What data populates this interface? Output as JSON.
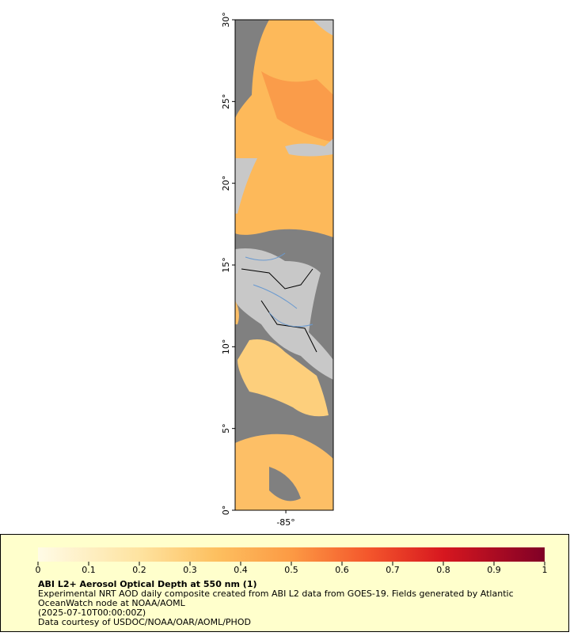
{
  "map": {
    "latlim": [
      0,
      30
    ],
    "lonlim": [
      -88.1,
      -82.1
    ],
    "lat_ticks": [
      {
        "value": 0,
        "label": "0°"
      },
      {
        "value": 5,
        "label": "5°"
      },
      {
        "value": 10,
        "label": "10°"
      },
      {
        "value": 15,
        "label": "15°"
      },
      {
        "value": 20,
        "label": "20°"
      },
      {
        "value": 25,
        "label": "25°"
      },
      {
        "value": 30,
        "label": "30°"
      }
    ],
    "lon_ticks": [
      {
        "value": -85,
        "label": "-85°"
      }
    ]
  },
  "colorbar": {
    "range": [
      0,
      1
    ],
    "ticks": [
      0,
      0.1,
      0.2,
      0.3,
      0.4,
      0.5,
      0.6,
      0.7,
      0.8,
      0.9,
      1
    ]
  },
  "legend": {
    "title": "ABI L2+ Aerosol Optical Depth at 550 nm (1)",
    "lines": [
      "Experimental NRT AOD daily composite created from ABI L2 data from GOES-19. Fields generated by Atlantic",
      "OceanWatch node at NOAA/AOML",
      "(2025-07-10T00:00:00Z)",
      "Data courtesy of USDOC/NOAA/OAR/AOML/PHOD"
    ]
  }
}
